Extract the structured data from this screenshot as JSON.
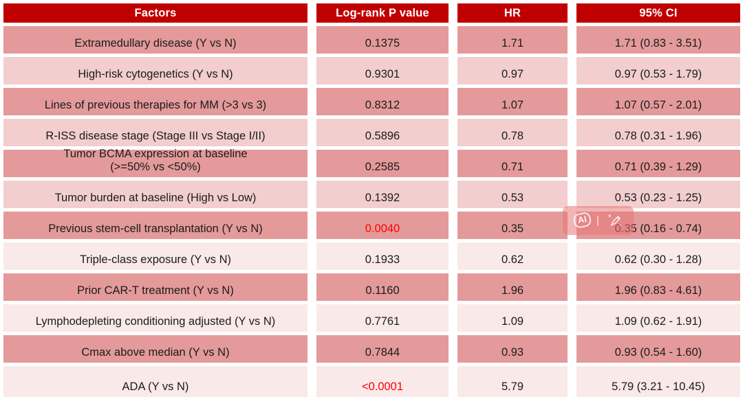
{
  "colors": {
    "header_bg": "#C00000",
    "header_text": "#FFFFFF",
    "row_dark": "#E49A9A",
    "row_medium": "#F2CECE",
    "row_light": "#F9E9E9",
    "body_text": "#1B1B1B",
    "p_highlight": "#FF0000",
    "watermark_bg": "rgba(232,118,118,0.55)"
  },
  "watermark": {
    "ai_label": "AI",
    "pen_icon": "pen-with-sparkles"
  },
  "chart_data": {
    "type": "table",
    "title": "",
    "columns": [
      "Factors",
      "Log-rank P value",
      "HR",
      "95% CI"
    ],
    "rows": [
      {
        "factor": "Extramedullary disease (Y vs N)",
        "p": "0.1375",
        "hr": "1.71",
        "ci": "1.71 (0.83 - 3.51)",
        "highlight": false
      },
      {
        "factor": "High-risk cytogenetics (Y vs N)",
        "p": "0.9301",
        "hr": "0.97",
        "ci": "0.97 (0.53 - 1.79)",
        "highlight": false
      },
      {
        "factor": "Lines of previous therapies for MM (>3 vs 3)",
        "p": "0.8312",
        "hr": "1.07",
        "ci": "1.07 (0.57 - 2.01)",
        "highlight": false
      },
      {
        "factor": "R-ISS disease stage (Stage III vs Stage I/II)",
        "p": "0.5896",
        "hr": "0.78",
        "ci": "0.78 (0.31 - 1.96)",
        "highlight": false
      },
      {
        "factor": "Tumor BCMA expression at baseline\n(>=50% vs <50%)",
        "p": "0.2585",
        "hr": "0.71",
        "ci": "0.71 (0.39 - 1.29)",
        "highlight": false
      },
      {
        "factor": "Tumor burden at baseline (High vs Low)",
        "p": "0.1392",
        "hr": "0.53",
        "ci": "0.53 (0.23 - 1.25)",
        "highlight": false
      },
      {
        "factor": "Previous stem-cell transplantation (Y vs N)",
        "p": "0.0040",
        "hr": "0.35",
        "ci": "0.35 (0.16 - 0.74)",
        "highlight": true
      },
      {
        "factor": "Triple-class exposure (Y vs N)",
        "p": "0.1933",
        "hr": "0.62",
        "ci": "0.62 (0.30 - 1.28)",
        "highlight": false
      },
      {
        "factor": "Prior CAR-T treatment (Y vs N)",
        "p": "0.1160",
        "hr": "1.96",
        "ci": "1.96 (0.83 - 4.61)",
        "highlight": false
      },
      {
        "factor": "Lymphodepleting conditioning adjusted (Y vs N)",
        "p": "0.7761",
        "hr": "1.09",
        "ci": "1.09 (0.62 - 1.91)",
        "highlight": false
      },
      {
        "factor": "Cmax above median (Y vs N)",
        "p": "0.7844",
        "hr": "0.93",
        "ci": "0.93 (0.54 - 1.60)",
        "highlight": false
      },
      {
        "factor": "ADA (Y vs N)",
        "p": "<0.0001",
        "hr": "5.79",
        "ci": "5.79 (3.21 - 10.45)",
        "highlight": true
      }
    ]
  }
}
